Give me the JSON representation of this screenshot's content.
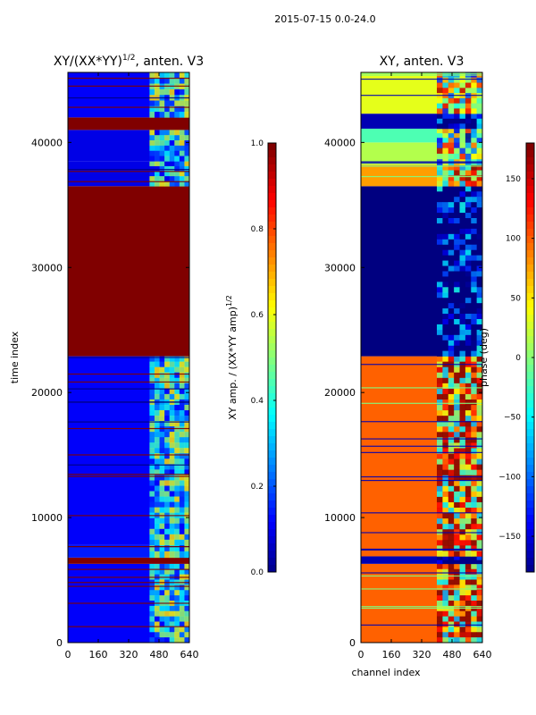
{
  "figure": {
    "suptitle": "2015-07-15 0.0-24.0"
  },
  "chart_data": [
    {
      "type": "heatmap",
      "title": "XY/(XX*YY)",
      "title_superscript": "1/2",
      "title_suffix": ", anten. V3",
      "xlabel": "",
      "ylabel": "time index",
      "xticks": [
        "0",
        "160",
        "320",
        "480",
        "640"
      ],
      "xlim": [
        0,
        640
      ],
      "yticks": [
        "0",
        "10000",
        "20000",
        "30000",
        "40000"
      ],
      "ylim": [
        0,
        45600
      ],
      "colorbar": {
        "label": "XY amp. / (XX*YY amp)",
        "label_superscript": "1/2",
        "range": [
          0.0,
          1.0
        ],
        "ticks": [
          "0.0",
          "0.2",
          "0.4",
          "0.6",
          "0.8",
          "1.0"
        ]
      },
      "bands": [
        {
          "y0": 0,
          "y1": 6300,
          "value": 0.12,
          "stripes": true
        },
        {
          "y0": 6300,
          "y1": 6800,
          "value": 1.0
        },
        {
          "y0": 6800,
          "y1": 7800,
          "value": 0.15,
          "stripes": true
        },
        {
          "y0": 7800,
          "y1": 22900,
          "value": 0.12,
          "stripes": true
        },
        {
          "y0": 22900,
          "y1": 36500,
          "value": 1.0
        },
        {
          "y0": 36500,
          "y1": 38500,
          "value": 0.1,
          "stripes": true
        },
        {
          "y0": 38500,
          "y1": 41000,
          "value": 0.1
        },
        {
          "y0": 41000,
          "y1": 42000,
          "value": 1.0
        },
        {
          "y0": 42000,
          "y1": 45600,
          "value": 0.12,
          "stripes": true
        }
      ],
      "noisy_channels": [
        430,
        640
      ]
    },
    {
      "type": "heatmap",
      "title": "XY, anten. V3",
      "xlabel": "channel index",
      "ylabel": "",
      "xticks": [
        "0",
        "160",
        "320",
        "480",
        "640"
      ],
      "xlim": [
        0,
        640
      ],
      "yticks": [
        "0",
        "10000",
        "20000",
        "30000",
        "40000"
      ],
      "ylim": [
        0,
        45600
      ],
      "colorbar": {
        "label": "phase (deg)",
        "range": [
          -180,
          180
        ],
        "ticks": [
          "-150",
          "-100",
          "-50",
          "0",
          "50",
          "100",
          "150"
        ]
      },
      "bands": [
        {
          "y0": 0,
          "y1": 6300,
          "value": 0.78,
          "stripes": true
        },
        {
          "y0": 6300,
          "y1": 6900,
          "value": 0.05
        },
        {
          "y0": 6900,
          "y1": 22900,
          "value": 0.78,
          "stripes": true
        },
        {
          "y0": 22900,
          "y1": 36500,
          "value": 0.0
        },
        {
          "y0": 36500,
          "y1": 38200,
          "value": 0.72,
          "stripes": true
        },
        {
          "y0": 38200,
          "y1": 40000,
          "value": 0.55,
          "stripes": true
        },
        {
          "y0": 40000,
          "y1": 41100,
          "value": 0.45
        },
        {
          "y0": 41100,
          "y1": 42300,
          "value": 0.05
        },
        {
          "y0": 42300,
          "y1": 45600,
          "value": 0.6,
          "stripes": true
        }
      ],
      "noisy_channels": [
        400,
        640
      ]
    }
  ]
}
